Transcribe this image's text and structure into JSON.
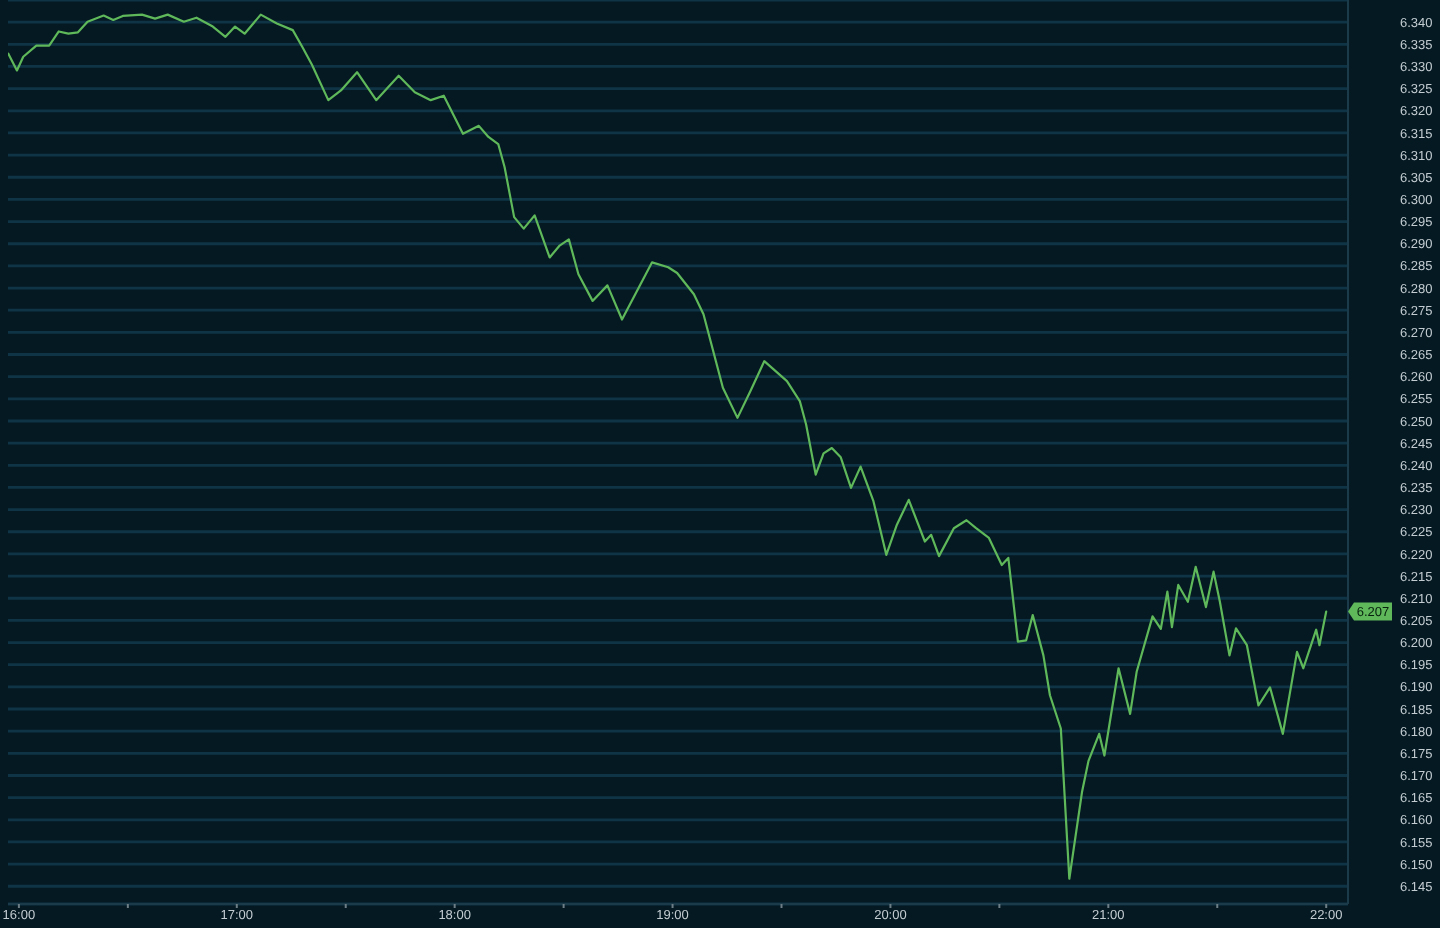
{
  "chart_data": {
    "type": "line",
    "x": [
      15.951,
      15.991,
      16.02,
      16.08,
      16.139,
      16.183,
      16.227,
      16.271,
      16.315,
      16.389,
      16.433,
      16.477,
      16.565,
      16.625,
      16.683,
      16.757,
      16.815,
      16.89,
      16.948,
      16.992,
      17.036,
      17.11,
      17.184,
      17.257,
      17.301,
      17.345,
      17.42,
      17.478,
      17.552,
      17.64,
      17.743,
      17.817,
      17.89,
      17.95,
      18.038,
      18.111,
      18.155,
      18.2,
      18.229,
      18.273,
      18.317,
      18.367,
      18.436,
      18.48,
      18.524,
      18.568,
      18.633,
      18.701,
      18.768,
      18.818,
      18.906,
      18.98,
      19.021,
      19.098,
      19.142,
      19.231,
      19.298,
      19.357,
      19.421,
      19.525,
      19.584,
      19.613,
      19.657,
      19.693,
      19.731,
      19.772,
      19.819,
      19.863,
      19.922,
      19.981,
      20.028,
      20.084,
      20.158,
      20.187,
      20.223,
      20.291,
      20.349,
      20.393,
      20.452,
      20.511,
      20.541,
      20.585,
      20.623,
      20.653,
      20.702,
      20.732,
      20.782,
      20.821,
      20.879,
      20.909,
      20.958,
      20.982,
      21.047,
      21.1,
      21.13,
      21.203,
      21.241,
      21.271,
      21.292,
      21.321,
      21.365,
      21.401,
      21.448,
      21.483,
      21.512,
      21.556,
      21.586,
      21.636,
      21.689,
      21.742,
      21.801,
      21.866,
      21.895,
      21.954,
      21.969,
      22.0
    ],
    "series": [
      {
        "color": "#5fb85a",
        "values": [
          6.3329,
          6.3291,
          6.3322,
          6.3347,
          6.3347,
          6.3379,
          6.3374,
          6.3377,
          6.3401,
          6.3415,
          6.3405,
          6.3414,
          6.3417,
          6.3408,
          6.3417,
          6.3401,
          6.341,
          6.339,
          6.3367,
          6.339,
          6.3374,
          6.3417,
          6.3397,
          6.3382,
          6.3344,
          6.3304,
          6.3224,
          6.3246,
          6.3287,
          6.3224,
          6.3279,
          6.3242,
          6.3224,
          6.3234,
          6.3148,
          6.3166,
          6.3141,
          6.3125,
          6.3073,
          6.296,
          6.2934,
          6.2964,
          6.2869,
          6.2895,
          6.291,
          6.2831,
          6.2771,
          6.2806,
          6.2729,
          6.2776,
          6.2858,
          6.2847,
          6.2834,
          6.2786,
          6.2741,
          6.2575,
          6.2507,
          6.2567,
          6.2635,
          6.259,
          6.2545,
          6.2492,
          6.2379,
          6.2427,
          6.2439,
          6.2418,
          6.2349,
          6.2397,
          6.2319,
          6.2198,
          6.2264,
          6.2322,
          6.2228,
          6.2243,
          6.2195,
          6.2258,
          6.2276,
          6.2258,
          6.2236,
          6.2175,
          6.2191,
          6.2002,
          6.2005,
          6.2062,
          6.1971,
          6.1881,
          6.1806,
          6.1467,
          6.1662,
          6.1733,
          6.1794,
          6.1745,
          6.1942,
          6.1839,
          6.1934,
          6.2059,
          6.2031,
          6.2115,
          6.2035,
          6.213,
          6.2092,
          6.2171,
          6.208,
          6.216,
          6.2092,
          6.1971,
          6.2032,
          6.1994,
          6.1858,
          6.1899,
          6.1794,
          6.1979,
          6.1942,
          6.2029,
          6.1994,
          6.207
        ]
      }
    ],
    "xlim": [
      15.95,
      22.1
    ],
    "xticks": [
      {
        "value": 16,
        "label": "16:00"
      },
      {
        "value": 16.5,
        "label": null
      },
      {
        "value": 17,
        "label": "17:00"
      },
      {
        "value": 17.5,
        "label": null
      },
      {
        "value": 18,
        "label": "18:00"
      },
      {
        "value": 18.5,
        "label": null
      },
      {
        "value": 19,
        "label": "19:00"
      },
      {
        "value": 19.5,
        "label": null
      },
      {
        "value": 20,
        "label": "20:00"
      },
      {
        "value": 20.5,
        "label": null
      },
      {
        "value": 21,
        "label": "21:00"
      },
      {
        "value": 21.5,
        "label": null
      },
      {
        "value": 22,
        "label": "22:00"
      }
    ],
    "ylim": [
      6.141,
      6.345
    ],
    "yticks": [
      6.145,
      {
        "value": 6.15,
        "label": "6.150"
      },
      6.155,
      {
        "value": 6.16,
        "label": "6.160"
      },
      6.165,
      {
        "value": 6.17,
        "label": "6.170"
      },
      6.175,
      {
        "value": 6.18,
        "label": "6.180"
      },
      6.185,
      {
        "value": 6.19,
        "label": "6.190"
      },
      6.195,
      {
        "value": 6.2,
        "label": "6.200"
      },
      6.205,
      {
        "value": 6.21,
        "label": "6.210"
      },
      6.215,
      {
        "value": 6.22,
        "label": "6.220"
      },
      6.225,
      {
        "value": 6.23,
        "label": "6.230"
      },
      6.235,
      {
        "value": 6.24,
        "label": "6.240"
      },
      6.245,
      {
        "value": 6.25,
        "label": "6.250"
      },
      6.255,
      {
        "value": 6.26,
        "label": "6.260"
      },
      6.265,
      {
        "value": 6.27,
        "label": "6.270"
      },
      6.275,
      {
        "value": 6.28,
        "label": "6.280"
      },
      6.285,
      {
        "value": 6.29,
        "label": "6.290"
      },
      6.295,
      {
        "value": 6.3,
        "label": "6.300"
      },
      6.305,
      {
        "value": 6.31,
        "label": "6.310"
      },
      6.315,
      {
        "value": 6.32,
        "label": "6.320"
      },
      6.325,
      {
        "value": 6.33,
        "label": "6.330"
      },
      6.335,
      {
        "value": 6.34,
        "label": "6.340"
      }
    ],
    "grid": "y",
    "annotations": [
      "6.207"
    ]
  }
}
